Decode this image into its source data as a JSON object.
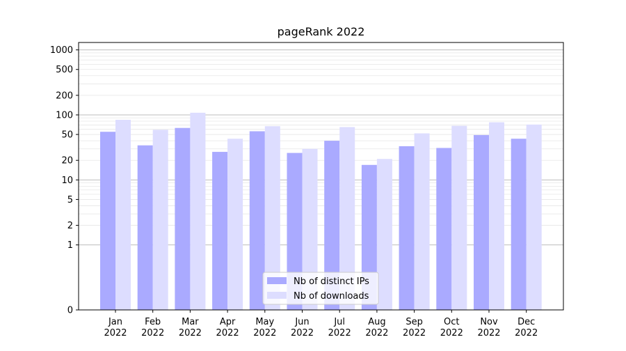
{
  "chart_data": {
    "type": "bar",
    "title": "pageRank 2022",
    "xlabel": "",
    "ylabel": "",
    "yscale": "symlog",
    "ylim": [
      0,
      1300
    ],
    "grid": "y-major-and-minor",
    "legend_placement": "lower-center",
    "y_ticks": [
      {
        "value": 0,
        "label": "0"
      },
      {
        "value": 1,
        "label": "1"
      },
      {
        "value": 2,
        "label": "2"
      },
      {
        "value": 5,
        "label": "5"
      },
      {
        "value": 10,
        "label": "10"
      },
      {
        "value": 20,
        "label": "20"
      },
      {
        "value": 50,
        "label": "50"
      },
      {
        "value": 100,
        "label": "100"
      },
      {
        "value": 200,
        "label": "200"
      },
      {
        "value": 500,
        "label": "500"
      },
      {
        "value": 1000,
        "label": "1000"
      }
    ],
    "categories": [
      {
        "month": "Jan",
        "year": "2022"
      },
      {
        "month": "Feb",
        "year": "2022"
      },
      {
        "month": "Mar",
        "year": "2022"
      },
      {
        "month": "Apr",
        "year": "2022"
      },
      {
        "month": "May",
        "year": "2022"
      },
      {
        "month": "Jun",
        "year": "2022"
      },
      {
        "month": "Jul",
        "year": "2022"
      },
      {
        "month": "Aug",
        "year": "2022"
      },
      {
        "month": "Sep",
        "year": "2022"
      },
      {
        "month": "Oct",
        "year": "2022"
      },
      {
        "month": "Nov",
        "year": "2022"
      },
      {
        "month": "Dec",
        "year": "2022"
      }
    ],
    "series": [
      {
        "name": "Nb of distinct IPs",
        "color": "#aaaaff",
        "values": [
          55,
          34,
          63,
          27,
          56,
          26,
          40,
          17,
          33,
          31,
          49,
          43
        ]
      },
      {
        "name": "Nb of downloads",
        "color": "#ddddff",
        "values": [
          84,
          59,
          108,
          43,
          67,
          30,
          65,
          21,
          52,
          68,
          77,
          71
        ]
      }
    ]
  }
}
